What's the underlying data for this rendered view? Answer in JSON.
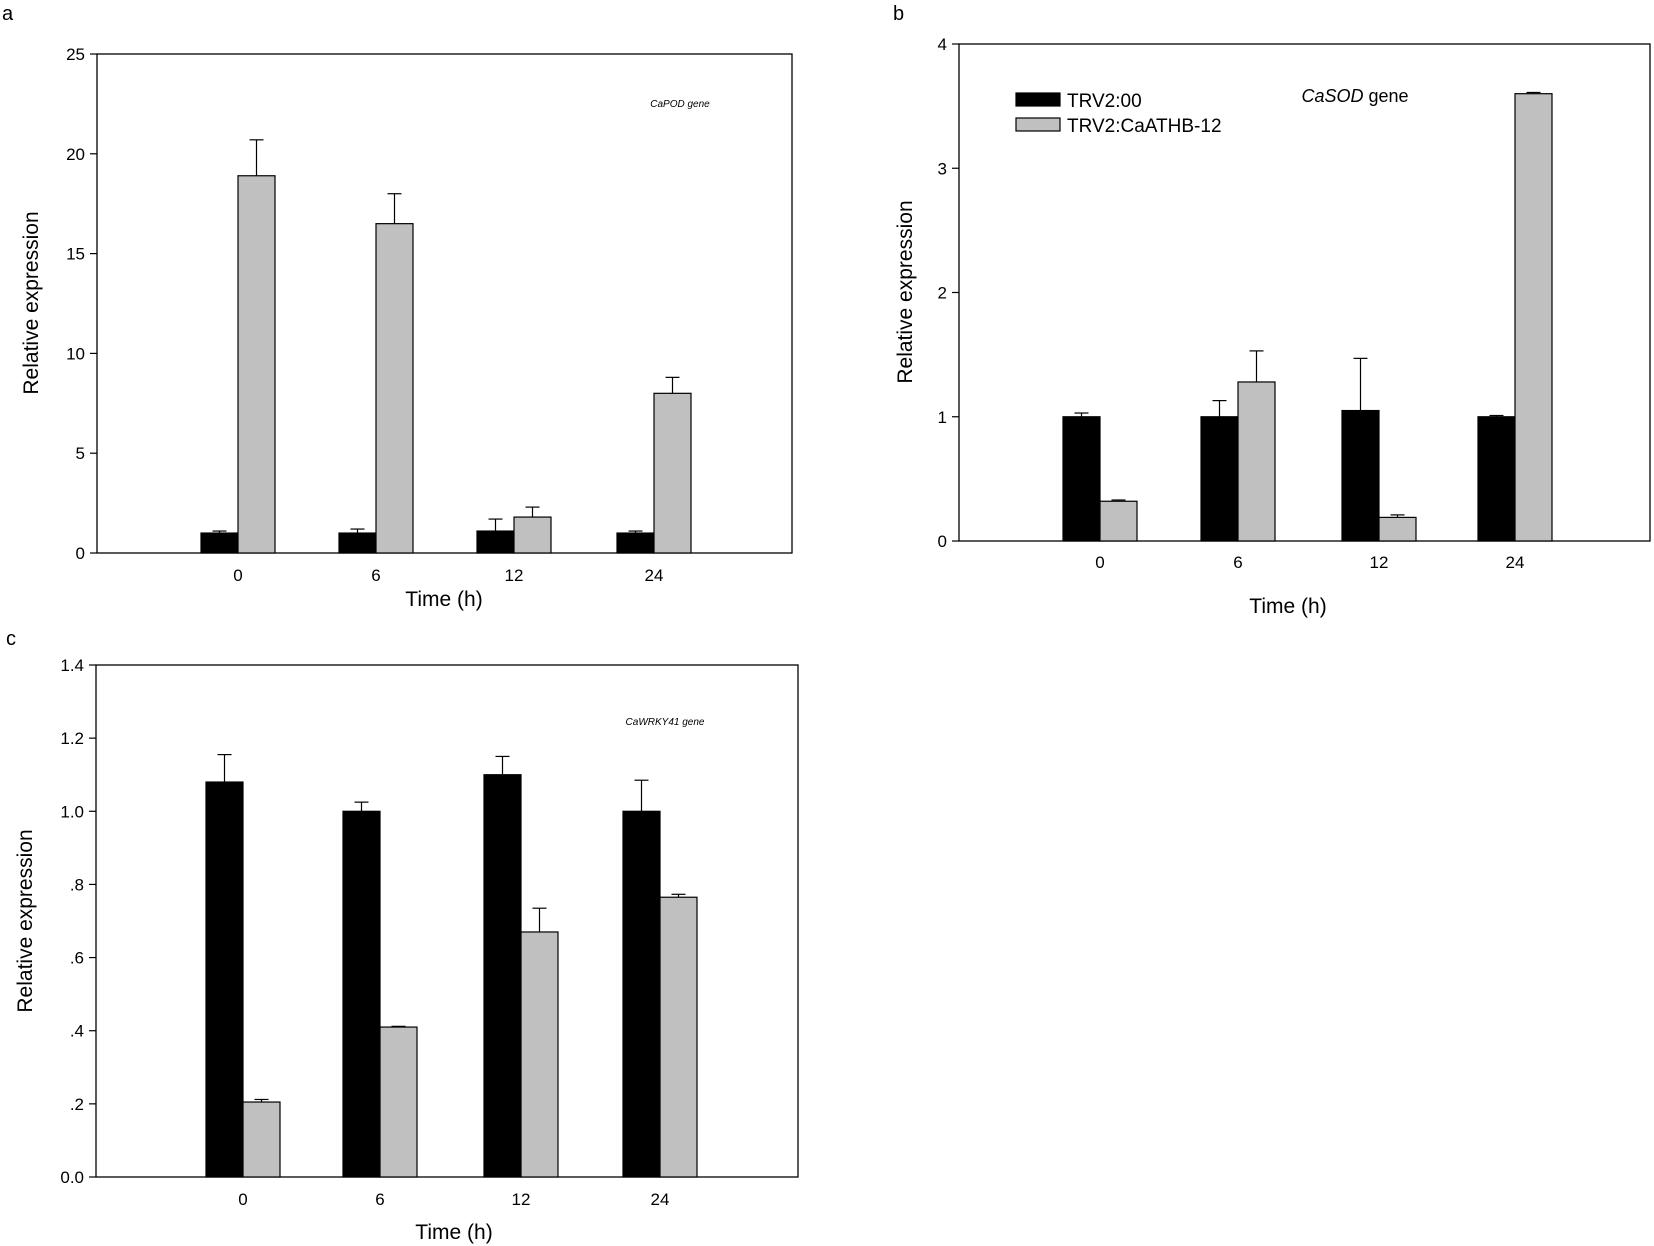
{
  "colors": {
    "series_black": "#000000",
    "series_gray": "#c0c0c0",
    "axis": "#000000"
  },
  "chart_data": [
    {
      "type": "bar",
      "panel": "a",
      "annotation_italic": "CaPOD gene",
      "annotation_plain": "",
      "xlabel": "Time (h)",
      "ylabel": "Relative expression",
      "ylim": [
        0,
        25
      ],
      "yticks": [
        0,
        5,
        10,
        15,
        20,
        25
      ],
      "ytick_labels": [
        "0",
        "5",
        "10",
        "15",
        "20",
        "25"
      ],
      "categories": [
        "0",
        "6",
        "12",
        "24"
      ],
      "legend": null,
      "series": [
        {
          "name": "TRV2:00",
          "values": [
            1.0,
            1.0,
            1.1,
            1.0
          ],
          "errors": [
            0.1,
            0.2,
            0.6,
            0.1
          ]
        },
        {
          "name": "TRV2:CaATHB-12",
          "values": [
            18.9,
            16.5,
            1.8,
            8.0
          ],
          "errors": [
            1.8,
            1.5,
            0.5,
            0.8
          ]
        }
      ]
    },
    {
      "type": "bar",
      "panel": "b",
      "annotation_italic": "CaSOD",
      "annotation_plain": " gene",
      "xlabel": "Time (h)",
      "ylabel": "Relative expression",
      "ylim": [
        0,
        4
      ],
      "yticks": [
        0,
        1,
        2,
        3,
        4
      ],
      "ytick_labels": [
        "0",
        "1",
        "2",
        "3",
        "4"
      ],
      "categories": [
        "0",
        "6",
        "12",
        "24"
      ],
      "legend": {
        "position": "top-left",
        "entries": [
          "TRV2:00",
          "TRV2:CaATHB-12"
        ]
      },
      "series": [
        {
          "name": "TRV2:00",
          "values": [
            1.0,
            1.0,
            1.05,
            1.0
          ],
          "errors": [
            0.03,
            0.13,
            0.42,
            0.01
          ]
        },
        {
          "name": "TRV2:CaATHB-12",
          "values": [
            0.32,
            1.28,
            0.19,
            3.6
          ],
          "errors": [
            0.01,
            0.25,
            0.02,
            0.01
          ]
        }
      ]
    },
    {
      "type": "bar",
      "panel": "c",
      "annotation_italic": "CaWRKY41 gene",
      "annotation_plain": "",
      "xlabel": "Time (h)",
      "ylabel": "Relative expression",
      "ylim": [
        0,
        1.4
      ],
      "yticks": [
        0,
        0.2,
        0.4,
        0.6,
        0.8,
        1.0,
        1.2,
        1.4
      ],
      "ytick_labels": [
        "0.0",
        ".2",
        ".4",
        ".6",
        ".8",
        "1.0",
        "1.2",
        "1.4"
      ],
      "categories": [
        "0",
        "6",
        "12",
        "24"
      ],
      "legend": null,
      "series": [
        {
          "name": "TRV2:00",
          "values": [
            1.08,
            1.0,
            1.1,
            1.0
          ],
          "errors": [
            0.075,
            0.025,
            0.05,
            0.085
          ]
        },
        {
          "name": "TRV2:CaATHB-12",
          "values": [
            0.205,
            0.41,
            0.67,
            0.765
          ],
          "errors": [
            0.007,
            0.002,
            0.065,
            0.008
          ]
        }
      ]
    }
  ]
}
